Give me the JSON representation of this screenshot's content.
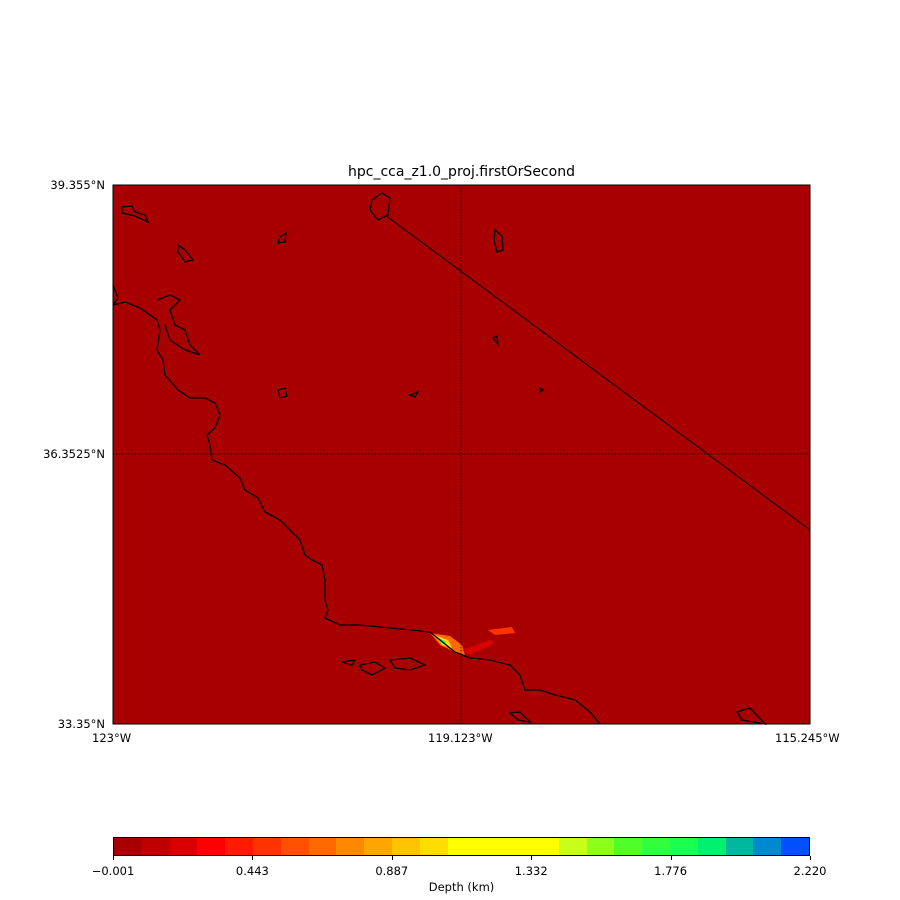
{
  "title": "hpc_cca_z1.0_proj.firstOrSecond",
  "map": {
    "lon_range": [
      -123,
      -115.245
    ],
    "lat_range": [
      33.35,
      39.355
    ],
    "background_color": "#a80000",
    "x_ticks": [
      "123°W",
      "119.123°W",
      "115.245°W"
    ],
    "y_ticks": [
      "39.355°N",
      "36.3525°N",
      "33.35°N"
    ],
    "gridlines": true
  },
  "colorbar": {
    "label": "Depth (km)",
    "ticks": [
      "−0.001",
      "0.443",
      "0.887",
      "1.332",
      "1.776",
      "2.220"
    ],
    "range": [
      -0.001,
      2.22
    ],
    "colors": [
      "#a80000",
      "#c00000",
      "#d80000",
      "#ff0000",
      "#ff1a00",
      "#ff3300",
      "#ff5000",
      "#ff6a00",
      "#ff8800",
      "#ffa500",
      "#ffc300",
      "#ffdd00",
      "#ffff00",
      "#ffff00",
      "#ffff00",
      "#ffff00",
      "#c8ff1a",
      "#8cff1a",
      "#50ff28",
      "#32ff3c",
      "#1aff50",
      "#00f070",
      "#00b8a0",
      "#0088d0",
      "#0050ff"
    ]
  }
}
